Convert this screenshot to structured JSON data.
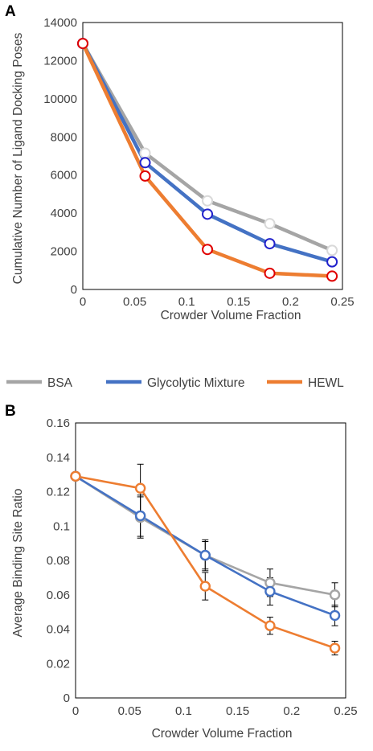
{
  "legend": {
    "items": [
      {
        "label": "BSA",
        "color": "#A5A5A5"
      },
      {
        "label": "Glycolytic Mixture",
        "color": "#4472C4"
      },
      {
        "label": "HEWL",
        "color": "#ED7D31"
      }
    ]
  },
  "chart_data": [
    {
      "panel_label": "A",
      "type": "line",
      "xlabel": "Crowder Volume Fraction",
      "ylabel": "Cumulative Number of Ligand Docking Poses",
      "xlim": [
        0,
        0.25
      ],
      "ylim": [
        0,
        14000
      ],
      "x_ticks": [
        "0",
        "0.05",
        "0.1",
        "0.15",
        "0.2",
        "0.25"
      ],
      "y_ticks": [
        "0",
        "2000",
        "4000",
        "6000",
        "8000",
        "10000",
        "12000",
        "14000"
      ],
      "grid": false,
      "x": [
        0,
        0.06,
        0.12,
        0.18,
        0.24
      ],
      "series": [
        {
          "name": "BSA",
          "color": "#A5A5A5",
          "marker_edge": "#D9D9D9",
          "values": [
            12900,
            7150,
            4650,
            3450,
            2050
          ]
        },
        {
          "name": "Glycolytic Mixture",
          "color": "#4472C4",
          "marker_edge": "#2222CC",
          "values": [
            12900,
            6650,
            3950,
            2400,
            1450
          ]
        },
        {
          "name": "HEWL",
          "color": "#ED7D31",
          "marker_edge": "#E00000",
          "values": [
            12900,
            5950,
            2100,
            850,
            700
          ]
        }
      ]
    },
    {
      "panel_label": "B",
      "type": "line",
      "xlabel": "Crowder Volume Fraction",
      "ylabel": "Average Binding Site Ratio",
      "xlim": [
        0,
        0.25
      ],
      "ylim": [
        0,
        0.16
      ],
      "x_ticks": [
        "0",
        "0.05",
        "0.1",
        "0.15",
        "0.2",
        "0.25"
      ],
      "y_ticks": [
        "0",
        "0.02",
        "0.04",
        "0.06",
        "0.08",
        "0.1",
        "0.12",
        "0.14",
        "0.16"
      ],
      "grid": false,
      "x": [
        0,
        0.06,
        0.12,
        0.18,
        0.24
      ],
      "series": [
        {
          "name": "BSA",
          "color": "#A5A5A5",
          "marker_edge": "#A5A5A5",
          "values": [
            0.129,
            0.105,
            0.083,
            0.067,
            0.06
          ],
          "errors": [
            0,
            0.012,
            0.008,
            0.008,
            0.007
          ]
        },
        {
          "name": "Glycolytic Mixture",
          "color": "#4472C4",
          "marker_edge": "#4472C4",
          "values": [
            0.129,
            0.106,
            0.083,
            0.062,
            0.048
          ],
          "errors": [
            0,
            0.012,
            0.009,
            0.008,
            0.006
          ]
        },
        {
          "name": "HEWL",
          "color": "#ED7D31",
          "marker_edge": "#ED7D31",
          "values": [
            0.129,
            0.122,
            0.065,
            0.042,
            0.029
          ],
          "errors": [
            0,
            0.014,
            0.008,
            0.005,
            0.004
          ]
        }
      ]
    }
  ]
}
